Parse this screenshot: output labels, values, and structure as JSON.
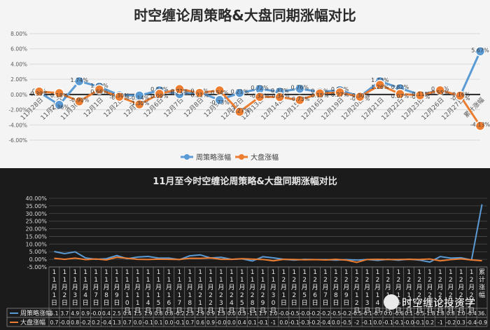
{
  "top_chart": {
    "title": "时空缠论周策略&大盘同期涨幅对比",
    "legend": [
      "周策略涨幅",
      "大盘涨幅"
    ]
  },
  "bottom_chart": {
    "title": "11月至今时空缠论周策略&大盘同期涨幅对比",
    "legend": [
      "周策略涨幅",
      "大盘涨幅"
    ],
    "categories": [
      "11月1日",
      "11月2日",
      "11月3日",
      "11月4日",
      "11月7日",
      "11月8日",
      "11月9日",
      "11月10日",
      "11月11日",
      "11月14日",
      "11月15日",
      "11月16日",
      "11月17日",
      "11月18日",
      "11月21日",
      "11月22日",
      "11月23日",
      "11月24日",
      "11月25日",
      "11月28日",
      "11月29日",
      "11月30日",
      "12月1日",
      "12月2日",
      "12月5日",
      "12月6日",
      "12月7日",
      "12月8日",
      "12月9日",
      "12月12日",
      "12月13日",
      "12月14日",
      "12月15日",
      "12月16日",
      "12月19日",
      "12月20日",
      "12月21日",
      "12月22日",
      "12月23日",
      "12月26日",
      "12月27日",
      "累计涨幅"
    ],
    "row1": [
      "5.1",
      "3.7",
      "4.9",
      "0.9",
      "-0.0",
      "0.4",
      "2.5",
      "0.4",
      "1.5",
      "1.9",
      "0.8",
      "0.8",
      "-0.2",
      "2.3",
      "2.9",
      "0.9",
      "1.3",
      "0.0",
      "0.3",
      "-1.1",
      "1.7",
      "1.0",
      "-0.0",
      "-0.5",
      "-0.0",
      "-0.2",
      "-0.2",
      "-0.5",
      "-0.2",
      "-0.5",
      "-0.1",
      "-0.7",
      "0.0",
      "-0.6",
      "0.1",
      "-0.5",
      "-1.8",
      "1.8",
      "0.8",
      "1.0",
      "-0.4",
      "36."
    ],
    "row2": [
      "0.7",
      "-0.0",
      "0.8",
      "-0.2",
      "0.2",
      "-0.4",
      "1.3",
      "0.7",
      "0.0",
      "-0.1",
      "0.1",
      "0.0",
      "-0.1",
      "0.7",
      "0.6",
      "0.9",
      "-0.0",
      "0.0",
      "0.4",
      "0.1",
      "-0.1",
      "-1",
      "0.0",
      "-0.1",
      "-0.3",
      "-0.2",
      "-0.4",
      "0.0",
      "-0.5",
      "-2",
      "-0.1",
      "0.0",
      "-0.1",
      "-0.1",
      "-0.0",
      "-0.1",
      "0.2",
      "-1",
      "-0.2",
      "0.3",
      "-0.4",
      "-0.9"
    ]
  },
  "chart_data": [
    {
      "type": "line",
      "title": "时空缠论周策略&大盘同期涨幅对比",
      "categories": [
        "11月28日",
        "11月29日",
        "11月30日",
        "12月1日",
        "12月2日",
        "12月5日",
        "12月6日",
        "12月7日",
        "12月8日",
        "12月9日",
        "12月12日",
        "12月13日",
        "12月14日",
        "12月15日",
        "12月16日",
        "12月19日",
        "12月20日",
        "12月21日",
        "12月22日",
        "12月23日",
        "12月26日",
        "12月27日",
        "累计涨幅"
      ],
      "series": [
        {
          "name": "周策略涨幅",
          "color": "#5b9bd5",
          "values": [
            0.3,
            -1.36,
            1.74,
            1.02,
            -0.09,
            -0.14,
            0.54,
            0.05,
            0.29,
            -0.73,
            0.21,
            0.72,
            0.37,
            0.76,
            0.33,
            0.56,
            -0.26,
            1.74,
            0.82,
            -0.02,
            0.58,
            -0.18,
            5.67
          ],
          "labels": [
            "0.3%",
            "-1.36%",
            "1.74%",
            "1.02%",
            "-0.09%",
            "-0.14%",
            "0.54%",
            "0.05%",
            "0.29%",
            "-0.73%",
            "0.21%",
            "0.72%",
            "0.37%",
            "0.76%",
            "0.33%",
            "0.56%",
            "-0.26%",
            "1.74%",
            "0.82%",
            "-0.02%",
            "0.58%",
            "-0.18%",
            "5.67%"
          ]
        },
        {
          "name": "大盘涨幅",
          "color": "#ed7d31",
          "values": [
            0.39,
            0.18,
            -0.9,
            0.66,
            -0.3,
            -1.3,
            0.09,
            0.71,
            0.21,
            0.54,
            -2.27,
            -0.32,
            -0.34,
            -0.73,
            0.15,
            0.27,
            -0.3,
            1.26,
            0.07,
            -0.11,
            0.55,
            -0.16,
            -4.13
          ],
          "labels": [
            "0.39%",
            "0.18%",
            "-0.90%",
            "0.66%",
            "-0.30%",
            "-1.30%",
            "0.09%",
            "0.71%",
            "0.21%",
            "0.54%",
            "-2.27%",
            "-0.32%",
            "-0.34%",
            "-0.73%",
            "0.15%",
            "0.27%",
            "-0.30%",
            "1.26%",
            "0.07%",
            "-0.11%",
            "0.55%",
            "-0.16%",
            "-4.13%"
          ]
        }
      ],
      "ylim": [
        -6,
        8
      ],
      "yticks": [
        "-6.00%",
        "-4.00%",
        "-2.00%",
        "0.00%",
        "2.00%",
        "4.00%",
        "6.00%",
        "8.00%"
      ],
      "grid": true,
      "legend_position": "bottom"
    },
    {
      "type": "line",
      "title": "11月至今时空缠论周策略&大盘同期涨幅对比",
      "categories": [
        "11月1日",
        "11月2日",
        "11月3日",
        "11月4日",
        "11月7日",
        "11月8日",
        "11月9日",
        "11月10日",
        "11月11日",
        "11月14日",
        "11月15日",
        "11月16日",
        "11月17日",
        "11月18日",
        "11月21日",
        "11月22日",
        "11月23日",
        "11月24日",
        "11月25日",
        "11月28日",
        "11月29日",
        "11月30日",
        "12月1日",
        "12月2日",
        "12月5日",
        "12月6日",
        "12月7日",
        "12月8日",
        "12月9日",
        "12月12日",
        "12月13日",
        "12月14日",
        "12月15日",
        "12月16日",
        "12月19日",
        "12月20日",
        "12月21日",
        "12月22日",
        "12月23日",
        "12月26日",
        "12月27日",
        "累计涨幅"
      ],
      "series": [
        {
          "name": "周策略涨幅",
          "color": "#5b9bd5",
          "values": [
            5.1,
            3.7,
            4.9,
            0.9,
            0.0,
            0.4,
            2.5,
            0.4,
            1.5,
            1.9,
            0.8,
            0.8,
            -0.2,
            2.3,
            2.9,
            0.9,
            1.3,
            0.0,
            0.3,
            -1.1,
            1.7,
            1.0,
            0.0,
            -0.5,
            0.0,
            -0.2,
            -0.2,
            -0.5,
            -0.2,
            -0.5,
            -0.1,
            -0.7,
            0.0,
            -0.6,
            0.1,
            -0.5,
            -1.8,
            1.8,
            0.8,
            1.0,
            -0.4,
            36.0
          ]
        },
        {
          "name": "大盘涨幅",
          "color": "#ed7d31",
          "values": [
            0.7,
            0.0,
            0.8,
            -0.2,
            0.2,
            -0.4,
            1.3,
            0.7,
            0.0,
            -0.1,
            0.1,
            0.0,
            -0.1,
            0.7,
            0.6,
            0.9,
            0.0,
            0.0,
            0.4,
            0.1,
            -0.1,
            -1.0,
            0.0,
            -0.1,
            -0.3,
            -0.2,
            -0.4,
            0.0,
            -0.5,
            -2.0,
            -0.1,
            0.0,
            -0.1,
            -0.1,
            0.0,
            -0.1,
            0.2,
            -1.0,
            -0.2,
            0.3,
            -0.4,
            -0.9
          ]
        }
      ],
      "ylim": [
        -5,
        40
      ],
      "yticks": [
        "-5.00%",
        "0.00%",
        "5.00%",
        "10.00%",
        "15.00%",
        "20.00%",
        "25.00%",
        "30.00%",
        "35.00%",
        "40.00%"
      ],
      "grid": true,
      "legend_position": "bottom-left table"
    }
  ],
  "watermark": "时空缠论投资学"
}
